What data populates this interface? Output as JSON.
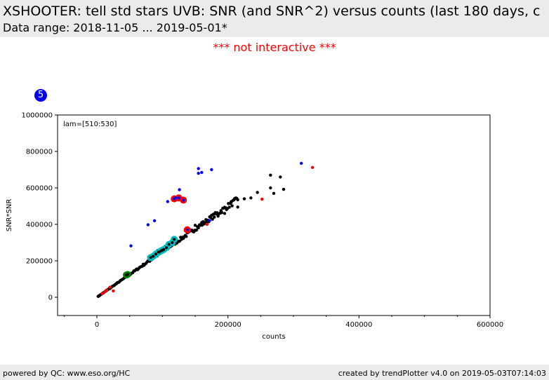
{
  "header": {
    "title": "XSHOOTER: tell std stars UVB: SNR (and SNR^2) versus counts (last 180 days, c",
    "subtitle": "Data range: 2018-11-05 ... 2019-05-01*"
  },
  "notice": "*** not interactive ***",
  "badge": "5",
  "footer": {
    "left": "powered by QC: www.eso.org/HC",
    "right": "created by trendPlotter v4.0 on 2019-05-03T07:14:03"
  },
  "chart_data": {
    "type": "scatter",
    "xlabel": "counts",
    "ylabel": "SNR*SNR",
    "annotation": "lam=[510:530]",
    "xlim": [
      -60000,
      600000
    ],
    "ylim": [
      -100000,
      1000000
    ],
    "xticks": [
      0,
      200000,
      400000,
      600000
    ],
    "yticks": [
      0,
      200000,
      400000,
      600000,
      800000,
      1000000
    ],
    "grid": false,
    "colors": {
      "black": "#000000",
      "red": "#ff0000",
      "blue": "#0000ff",
      "cyan": "#00bcbc",
      "green": "#008000"
    },
    "series": [
      {
        "color": "black",
        "style": "dot",
        "trend": {
          "x0": 2000,
          "x1": 215000,
          "slope": 2.5,
          "scatter_fraction": 0.03,
          "count": 150
        },
        "points": [
          [
            2000,
            5000
          ],
          [
            4000,
            9000
          ],
          [
            20000,
            48000
          ],
          [
            30000,
            75000
          ],
          [
            150000,
            395000
          ],
          [
            160000,
            410000
          ],
          [
            175000,
            450000
          ],
          [
            185000,
            445000
          ],
          [
            190000,
            470000
          ],
          [
            195000,
            460000
          ],
          [
            205000,
            520000
          ],
          [
            210000,
            540000
          ],
          [
            215000,
            495000
          ],
          [
            225000,
            540000
          ],
          [
            235000,
            545000
          ],
          [
            245000,
            575000
          ],
          [
            265000,
            670000
          ],
          [
            265000,
            600000
          ],
          [
            270000,
            570000
          ],
          [
            280000,
            660000
          ],
          [
            285000,
            592000
          ]
        ]
      },
      {
        "color": "red",
        "style": "dot",
        "points": [
          [
            8000,
            20000
          ],
          [
            12000,
            30000
          ],
          [
            15000,
            40000
          ],
          [
            20000,
            55000
          ],
          [
            25000,
            35000
          ],
          [
            135000,
            365000
          ],
          [
            168000,
            400000
          ],
          [
            252000,
            538000
          ],
          [
            329000,
            712000
          ]
        ]
      },
      {
        "color": "red",
        "style": "ring",
        "points": [
          [
            118000,
            540000
          ],
          [
            125000,
            545000
          ],
          [
            132000,
            533000
          ],
          [
            138000,
            370000
          ]
        ]
      },
      {
        "color": "blue",
        "style": "dot",
        "points": [
          [
            52000,
            282000
          ],
          [
            78000,
            398000
          ],
          [
            88000,
            420000
          ],
          [
            108000,
            525000
          ],
          [
            126000,
            590000
          ],
          [
            155000,
            706000
          ],
          [
            160000,
            685000
          ],
          [
            175000,
            700000
          ],
          [
            155000,
            680000
          ],
          [
            172000,
            420000
          ],
          [
            312000,
            735000
          ],
          [
            120000,
            545000
          ],
          [
            125000,
            545000
          ]
        ]
      },
      {
        "color": "cyan",
        "style": "ring",
        "points": [
          [
            82000,
            218000
          ],
          [
            86000,
            225000
          ],
          [
            90000,
            237000
          ],
          [
            94000,
            248000
          ],
          [
            98000,
            255000
          ],
          [
            102000,
            262000
          ],
          [
            106000,
            272000
          ],
          [
            110000,
            290000
          ],
          [
            115000,
            300000
          ],
          [
            118000,
            318000
          ],
          [
            95000,
            248000
          ],
          [
            100000,
            258000
          ]
        ]
      },
      {
        "color": "green",
        "style": "ring",
        "points": [
          [
            45000,
            122000
          ],
          [
            47000,
            125000
          ]
        ]
      }
    ]
  }
}
